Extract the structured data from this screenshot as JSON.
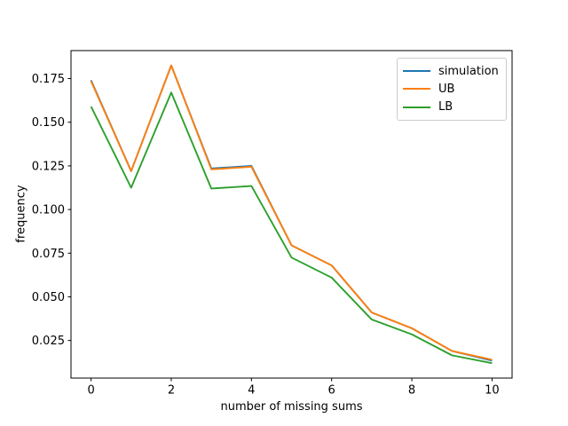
{
  "figure": {
    "background": "#ffffff",
    "text_color": "#000000",
    "spine_color": "#000000"
  },
  "chart_data": {
    "type": "line",
    "title": "",
    "xlabel": "number of missing sums",
    "ylabel": "frequency",
    "grid": false,
    "legend_position": "upper right",
    "x": [
      0,
      1,
      2,
      3,
      4,
      5,
      6,
      7,
      8,
      9,
      10
    ],
    "series": [
      {
        "name": "simulation",
        "color": "#1f77b4",
        "values": [
          0.174,
          0.122,
          0.1825,
          0.1235,
          0.125,
          0.0795,
          0.068,
          0.041,
          0.032,
          0.019,
          0.0135
        ]
      },
      {
        "name": "UB",
        "color": "#ff7f0e",
        "values": [
          0.1735,
          0.122,
          0.1825,
          0.123,
          0.1245,
          0.0795,
          0.068,
          0.041,
          0.032,
          0.019,
          0.014
        ]
      },
      {
        "name": "LB",
        "color": "#2ca02c",
        "values": [
          0.159,
          0.1125,
          0.167,
          0.112,
          0.1135,
          0.0725,
          0.061,
          0.037,
          0.0285,
          0.0165,
          0.012
        ]
      }
    ],
    "x_ticks": [
      {
        "value": 0,
        "label": "0"
      },
      {
        "value": 2,
        "label": "2"
      },
      {
        "value": 4,
        "label": "4"
      },
      {
        "value": 6,
        "label": "6"
      },
      {
        "value": 8,
        "label": "8"
      },
      {
        "value": 10,
        "label": "10"
      }
    ],
    "y_ticks": [
      {
        "value": 0.025,
        "label": "0.025"
      },
      {
        "value": 0.05,
        "label": "0.050"
      },
      {
        "value": 0.075,
        "label": "0.075"
      },
      {
        "value": 0.1,
        "label": "0.100"
      },
      {
        "value": 0.125,
        "label": "0.125"
      },
      {
        "value": 0.15,
        "label": "0.150"
      },
      {
        "value": 0.175,
        "label": "0.175"
      }
    ]
  }
}
